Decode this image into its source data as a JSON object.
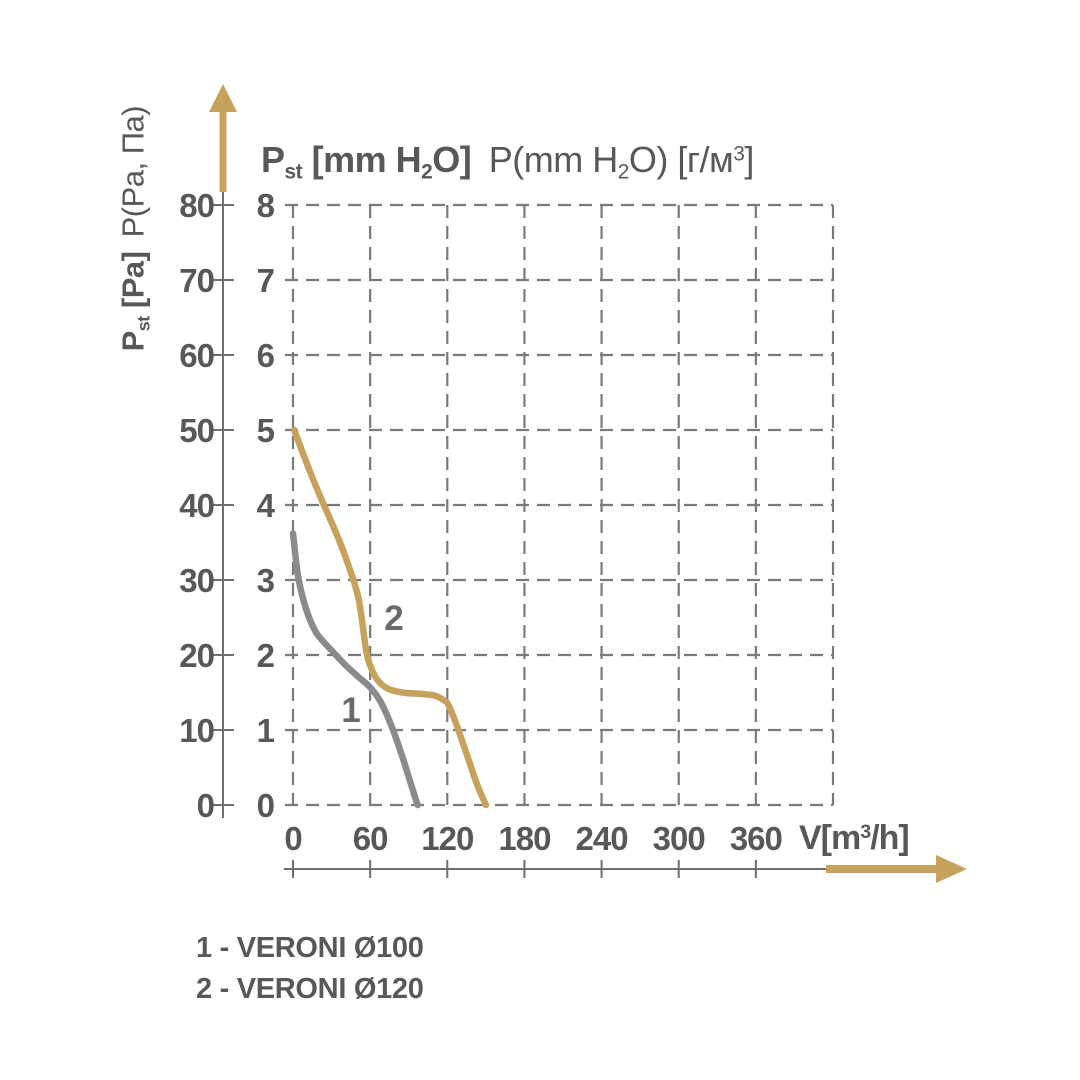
{
  "page": {
    "background": "#ffffff"
  },
  "colors": {
    "accent_arrow": "#C7A25C",
    "text": "#58585A",
    "grid_line": "#7A7A7A",
    "axis_line": "#6E6E6E",
    "curve_number": "#6A6A6A"
  },
  "title": {
    "b1": "P",
    "b_sub_st": "st",
    "b2": " [mm H",
    "b_sub_2": "2",
    "b3": "O]",
    "r1": " P(mm H",
    "r_sub_2": "2",
    "r2": "O) [г/м",
    "r_sup_3": "3",
    "r3": "]"
  },
  "y_axis_label": {
    "b1": "P",
    "b_sub_st": "st",
    "b2": " [Pa]",
    "r1": " P(Pa, Па)"
  },
  "legend": {
    "items": [
      {
        "label": "1 - VERONI Ø100"
      },
      {
        "label": "2 - VERONI Ø120"
      }
    ]
  },
  "chart_data": {
    "type": "line",
    "title": "P st [mm H2O] P(mm H2O) [г/м3]",
    "grid": "dashed",
    "x_axis": {
      "unit_pre": "V[m",
      "unit_sup": "3",
      "unit_post": "/h]",
      "ticks": [
        0,
        60,
        120,
        180,
        240,
        300,
        360
      ],
      "grid_lines_x": [
        0,
        60,
        120,
        180,
        240,
        300,
        360,
        420
      ],
      "range": [
        0,
        420
      ]
    },
    "y_axis_mm_h2o": {
      "label": "P st [mm H2O]",
      "ticks": [
        0,
        1,
        2,
        3,
        4,
        5,
        6,
        7,
        8
      ],
      "range": [
        0,
        8
      ]
    },
    "y_axis_pa": {
      "label": "P st [Pa] P(Pa, Па)",
      "ticks": [
        0,
        10,
        20,
        30,
        40,
        50,
        60,
        70,
        80
      ],
      "range": [
        0,
        80
      ]
    },
    "series": [
      {
        "name": "VERONI Ø100",
        "curve_label": "1",
        "color": "#8B8B8B",
        "points_v_mmh2o": [
          [
            0,
            3.62
          ],
          [
            4,
            3.05
          ],
          [
            10,
            2.62
          ],
          [
            18,
            2.3
          ],
          [
            29,
            2.08
          ],
          [
            40,
            1.88
          ],
          [
            50,
            1.72
          ],
          [
            60,
            1.57
          ],
          [
            68,
            1.38
          ],
          [
            76,
            1.08
          ],
          [
            84,
            0.7
          ],
          [
            91,
            0.32
          ],
          [
            95,
            0.1
          ],
          [
            97,
            0
          ]
        ]
      },
      {
        "name": "VERONI Ø120",
        "curve_label": "2",
        "color": "#C7A25C",
        "points_v_mmh2o": [
          [
            1,
            5.0
          ],
          [
            12,
            4.5
          ],
          [
            22,
            4.08
          ],
          [
            33,
            3.65
          ],
          [
            42,
            3.25
          ],
          [
            51,
            2.75
          ],
          [
            57,
            2.05
          ],
          [
            61,
            1.82
          ],
          [
            66,
            1.66
          ],
          [
            74,
            1.55
          ],
          [
            85,
            1.5
          ],
          [
            100,
            1.48
          ],
          [
            110,
            1.46
          ],
          [
            117,
            1.4
          ],
          [
            121,
            1.33
          ],
          [
            128,
            1.03
          ],
          [
            136,
            0.63
          ],
          [
            143,
            0.28
          ],
          [
            150,
            0
          ]
        ]
      }
    ]
  }
}
